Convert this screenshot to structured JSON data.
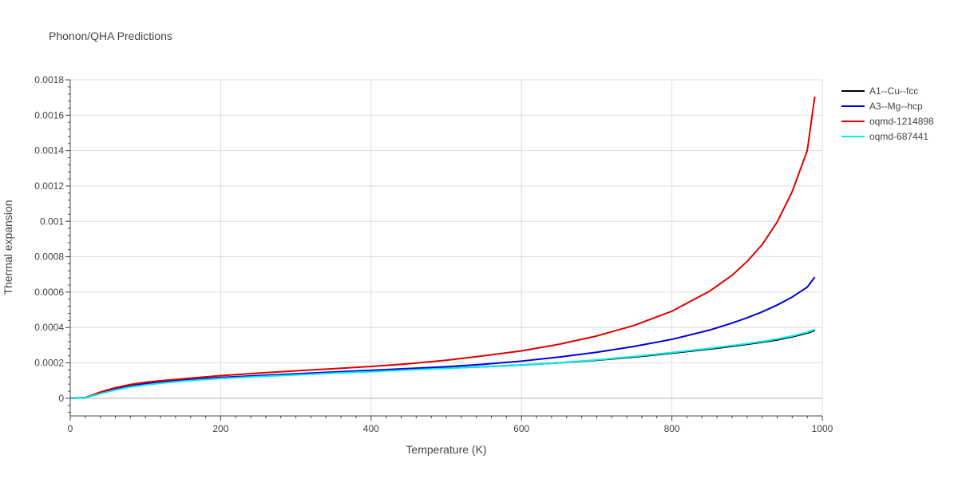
{
  "chart_data": {
    "type": "line",
    "title": "Phonon/QHA Predictions",
    "xlabel": "Temperature (K)",
    "ylabel": "Thermal expansion",
    "xlim": [
      0,
      1000
    ],
    "ylim": [
      -0.0001,
      0.0018
    ],
    "xticks": [
      0,
      200,
      400,
      600,
      800,
      1000
    ],
    "xtick_labels": [
      "0",
      "200",
      "400",
      "600",
      "800",
      "1000"
    ],
    "yticks": [
      0,
      0.0002,
      0.0004,
      0.0006,
      0.0008,
      0.001,
      0.0012,
      0.0014,
      0.0016,
      0.0018
    ],
    "ytick_labels": [
      "0",
      "0.0002",
      "0.0004",
      "0.0006",
      "0.0008",
      "0.001",
      "0.0012",
      "0.0014",
      "0.0016",
      "0.0018"
    ],
    "grid": true,
    "legend_position": "top-right",
    "x": [
      0,
      20,
      40,
      60,
      80,
      100,
      120,
      150,
      200,
      250,
      300,
      350,
      400,
      450,
      500,
      550,
      600,
      650,
      700,
      750,
      800,
      850,
      880,
      900,
      920,
      940,
      960,
      980,
      990
    ],
    "series": [
      {
        "name": "A1--Cu--fcc",
        "color": "#000000",
        "values": [
          0,
          3e-06,
          3e-05,
          5e-05,
          6.8e-05,
          7.8e-05,
          8.8e-05,
          0.0001,
          0.000115,
          0.000125,
          0.000135,
          0.000145,
          0.000152,
          0.000162,
          0.00017,
          0.000178,
          0.000188,
          0.0002,
          0.000215,
          0.000233,
          0.000255,
          0.000278,
          0.000294,
          0.000305,
          0.000317,
          0.00033,
          0.000347,
          0.000368,
          0.000383
        ]
      },
      {
        "name": "A3--Mg--hcp",
        "color": "#0000dd",
        "values": [
          0,
          3e-06,
          3.1e-05,
          5.5e-05,
          7.2e-05,
          8.3e-05,
          9.2e-05,
          0.000103,
          0.000118,
          0.000128,
          0.000138,
          0.000148,
          0.000158,
          0.000168,
          0.000178,
          0.000192,
          0.00021,
          0.000233,
          0.00026,
          0.000293,
          0.000333,
          0.000385,
          0.000425,
          0.000455,
          0.000488,
          0.000527,
          0.000572,
          0.000628,
          0.000685
        ]
      },
      {
        "name": "oqmd-1214898",
        "color": "#dd0000",
        "values": [
          0,
          3e-06,
          3.5e-05,
          6e-05,
          7.8e-05,
          9e-05,
          9.9e-05,
          0.00011,
          0.000128,
          0.000142,
          0.000155,
          0.000167,
          0.00018,
          0.000195,
          0.000215,
          0.00024,
          0.000268,
          0.000305,
          0.000352,
          0.000412,
          0.000492,
          0.000605,
          0.000695,
          0.000773,
          0.000868,
          0.000996,
          0.001168,
          0.0014,
          0.001705
        ]
      },
      {
        "name": "oqmd-687441",
        "color": "#00eeee",
        "values": [
          0,
          2e-06,
          2.6e-05,
          4.7e-05,
          6.4e-05,
          7.5e-05,
          8.5e-05,
          9.7e-05,
          0.000112,
          0.000122,
          0.000132,
          0.000142,
          0.00015,
          0.00016,
          0.000169,
          0.000178,
          0.000188,
          0.0002,
          0.000217,
          0.000236,
          0.000258,
          0.000282,
          0.000298,
          0.000309,
          0.000321,
          0.000335,
          0.000352,
          0.000373,
          0.000389
        ]
      }
    ]
  }
}
